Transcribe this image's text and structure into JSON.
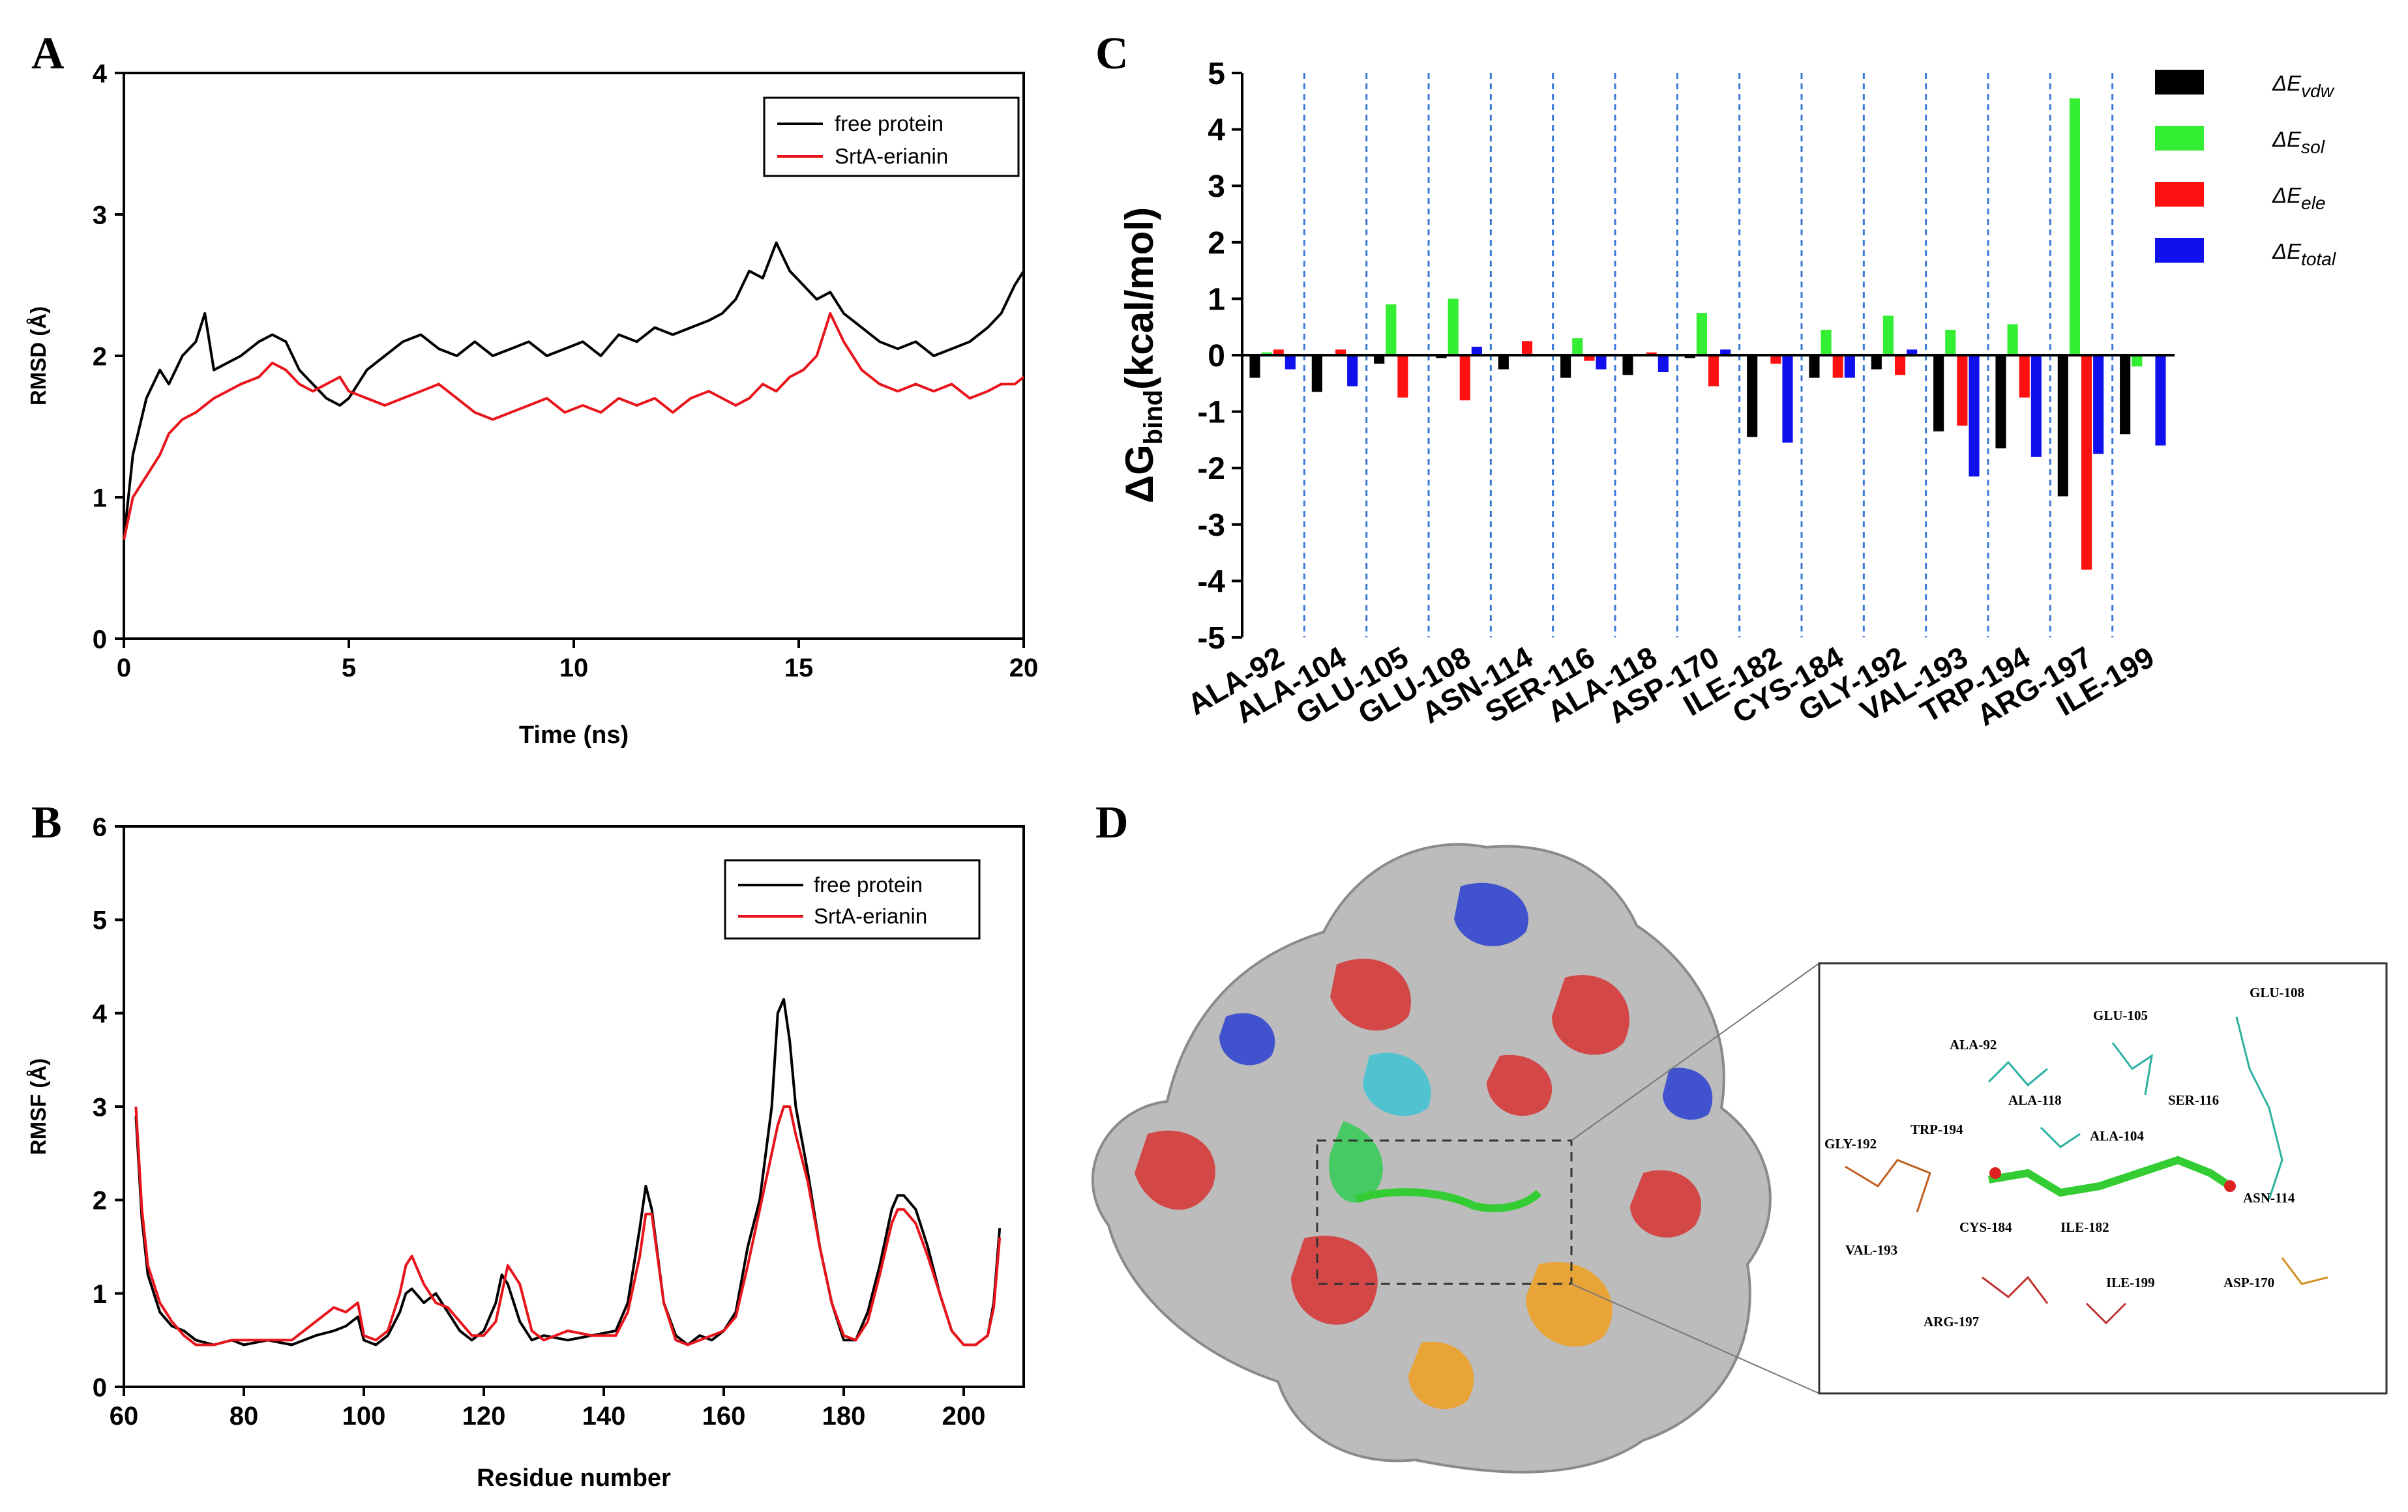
{
  "panels": {
    "A": "A",
    "B": "B",
    "C": "C",
    "D": "D"
  },
  "chart_data": [
    {
      "id": "A",
      "type": "line",
      "xlabel": "Time (ns)",
      "ylabel": "RMSD (Å)",
      "xlim": [
        0,
        20
      ],
      "ylim": [
        0,
        4
      ],
      "xticks": [
        0,
        5,
        10,
        15,
        20
      ],
      "yticks": [
        0,
        1,
        2,
        3,
        4
      ],
      "legend": {
        "placement": "top-right",
        "entries": [
          "free protein",
          "SrtA-erianin"
        ]
      },
      "series": [
        {
          "name": "free protein",
          "color": "#000000",
          "x": [
            0,
            0.2,
            0.5,
            0.8,
            1.0,
            1.3,
            1.6,
            1.8,
            2.0,
            2.3,
            2.6,
            3.0,
            3.3,
            3.6,
            3.9,
            4.2,
            4.5,
            4.8,
            5.0,
            5.4,
            5.8,
            6.2,
            6.6,
            7.0,
            7.4,
            7.8,
            8.2,
            8.6,
            9.0,
            9.4,
            9.8,
            10.2,
            10.6,
            11.0,
            11.4,
            11.8,
            12.2,
            12.6,
            13.0,
            13.3,
            13.6,
            13.9,
            14.2,
            14.5,
            14.8,
            15.1,
            15.4,
            15.7,
            16.0,
            16.4,
            16.8,
            17.2,
            17.6,
            18.0,
            18.4,
            18.8,
            19.2,
            19.5,
            19.8,
            20.0
          ],
          "y": [
            0.7,
            1.3,
            1.7,
            1.9,
            1.8,
            2.0,
            2.1,
            2.3,
            1.9,
            1.95,
            2.0,
            2.1,
            2.15,
            2.1,
            1.9,
            1.8,
            1.7,
            1.65,
            1.7,
            1.9,
            2.0,
            2.1,
            2.15,
            2.05,
            2.0,
            2.1,
            2.0,
            2.05,
            2.1,
            2.0,
            2.05,
            2.1,
            2.0,
            2.15,
            2.1,
            2.2,
            2.15,
            2.2,
            2.25,
            2.3,
            2.4,
            2.6,
            2.55,
            2.8,
            2.6,
            2.5,
            2.4,
            2.45,
            2.3,
            2.2,
            2.1,
            2.05,
            2.1,
            2.0,
            2.05,
            2.1,
            2.2,
            2.3,
            2.5,
            2.6
          ]
        },
        {
          "name": "SrtA-erianin",
          "color": "#e8141b",
          "x": [
            0,
            0.2,
            0.5,
            0.8,
            1.0,
            1.3,
            1.6,
            1.8,
            2.0,
            2.3,
            2.6,
            3.0,
            3.3,
            3.6,
            3.9,
            4.2,
            4.5,
            4.8,
            5.0,
            5.4,
            5.8,
            6.2,
            6.6,
            7.0,
            7.4,
            7.8,
            8.2,
            8.6,
            9.0,
            9.4,
            9.8,
            10.2,
            10.6,
            11.0,
            11.4,
            11.8,
            12.2,
            12.6,
            13.0,
            13.3,
            13.6,
            13.9,
            14.2,
            14.5,
            14.8,
            15.1,
            15.4,
            15.7,
            16.0,
            16.4,
            16.8,
            17.2,
            17.6,
            18.0,
            18.4,
            18.8,
            19.2,
            19.5,
            19.8,
            20.0
          ],
          "y": [
            0.7,
            1.0,
            1.15,
            1.3,
            1.45,
            1.55,
            1.6,
            1.65,
            1.7,
            1.75,
            1.8,
            1.85,
            1.95,
            1.9,
            1.8,
            1.75,
            1.8,
            1.85,
            1.75,
            1.7,
            1.65,
            1.7,
            1.75,
            1.8,
            1.7,
            1.6,
            1.55,
            1.6,
            1.65,
            1.7,
            1.6,
            1.65,
            1.6,
            1.7,
            1.65,
            1.7,
            1.6,
            1.7,
            1.75,
            1.7,
            1.65,
            1.7,
            1.8,
            1.75,
            1.85,
            1.9,
            2.0,
            2.3,
            2.1,
            1.9,
            1.8,
            1.75,
            1.8,
            1.75,
            1.8,
            1.7,
            1.75,
            1.8,
            1.8,
            1.85
          ]
        }
      ]
    },
    {
      "id": "B",
      "type": "line",
      "xlabel": "Residue number",
      "ylabel": "RMSF (Å)",
      "xlim": [
        60,
        210
      ],
      "ylim": [
        0,
        6
      ],
      "xticks": [
        60,
        80,
        100,
        120,
        140,
        160,
        180,
        200
      ],
      "yticks": [
        0,
        1,
        2,
        3,
        4,
        5,
        6
      ],
      "legend": {
        "placement": "top-right",
        "entries": [
          "free protein",
          "SrtA-erianin"
        ]
      },
      "series": [
        {
          "name": "free protein",
          "color": "#000000",
          "x": [
            62,
            63,
            64,
            66,
            68,
            70,
            72,
            75,
            78,
            80,
            84,
            88,
            92,
            95,
            97,
            99,
            100,
            102,
            104,
            106,
            107,
            108,
            110,
            112,
            114,
            116,
            118,
            120,
            122,
            123,
            124,
            126,
            128,
            130,
            134,
            138,
            142,
            144,
            146,
            147,
            148,
            150,
            152,
            154,
            156,
            158,
            160,
            162,
            164,
            166,
            168,
            169,
            170,
            171,
            172,
            174,
            176,
            178,
            180,
            182,
            184,
            186,
            188,
            189,
            190,
            192,
            194,
            196,
            198,
            200,
            202,
            204,
            205,
            206
          ],
          "y": [
            2.9,
            1.8,
            1.2,
            0.8,
            0.65,
            0.6,
            0.5,
            0.45,
            0.5,
            0.45,
            0.5,
            0.45,
            0.55,
            0.6,
            0.65,
            0.75,
            0.5,
            0.45,
            0.55,
            0.8,
            1.0,
            1.05,
            0.9,
            1.0,
            0.8,
            0.6,
            0.5,
            0.6,
            0.9,
            1.2,
            1.1,
            0.7,
            0.5,
            0.55,
            0.5,
            0.55,
            0.6,
            0.9,
            1.7,
            2.15,
            1.9,
            0.9,
            0.55,
            0.45,
            0.55,
            0.5,
            0.6,
            0.8,
            1.5,
            2.0,
            3.0,
            4.0,
            4.15,
            3.7,
            3.0,
            2.3,
            1.5,
            0.9,
            0.5,
            0.5,
            0.8,
            1.3,
            1.9,
            2.05,
            2.05,
            1.9,
            1.5,
            1.0,
            0.6,
            0.45,
            0.45,
            0.55,
            0.9,
            1.7
          ]
        },
        {
          "name": "SrtA-erianin",
          "color": "#e8141b",
          "x": [
            62,
            63,
            64,
            66,
            68,
            70,
            72,
            75,
            78,
            80,
            84,
            88,
            92,
            95,
            97,
            99,
            100,
            102,
            104,
            106,
            107,
            108,
            110,
            112,
            114,
            116,
            118,
            120,
            122,
            123,
            124,
            126,
            128,
            130,
            134,
            138,
            142,
            144,
            146,
            147,
            148,
            150,
            152,
            154,
            156,
            158,
            160,
            162,
            164,
            166,
            168,
            169,
            170,
            171,
            172,
            174,
            176,
            178,
            180,
            182,
            184,
            186,
            188,
            189,
            190,
            192,
            194,
            196,
            198,
            200,
            202,
            204,
            205,
            206
          ],
          "y": [
            3.0,
            1.9,
            1.3,
            0.9,
            0.7,
            0.55,
            0.45,
            0.45,
            0.5,
            0.5,
            0.5,
            0.5,
            0.7,
            0.85,
            0.8,
            0.9,
            0.55,
            0.5,
            0.6,
            1.0,
            1.3,
            1.4,
            1.1,
            0.9,
            0.85,
            0.7,
            0.55,
            0.55,
            0.7,
            1.0,
            1.3,
            1.1,
            0.6,
            0.5,
            0.6,
            0.55,
            0.55,
            0.8,
            1.4,
            1.85,
            1.85,
            0.9,
            0.5,
            0.45,
            0.5,
            0.55,
            0.6,
            0.75,
            1.3,
            1.9,
            2.5,
            2.8,
            3.0,
            3.0,
            2.7,
            2.2,
            1.5,
            0.9,
            0.55,
            0.5,
            0.7,
            1.2,
            1.75,
            1.9,
            1.9,
            1.75,
            1.4,
            1.0,
            0.6,
            0.45,
            0.45,
            0.55,
            0.85,
            1.6
          ]
        }
      ]
    },
    {
      "id": "C",
      "type": "bar",
      "ylabel": "ΔG_bind(kcal/mol)",
      "ylim": [
        -5,
        5
      ],
      "yticks": [
        5,
        4,
        3,
        2,
        1,
        0,
        -1,
        -2,
        -3,
        -4,
        -5
      ],
      "categories": [
        "ALA-92",
        "ALA-104",
        "GLU-105",
        "GLU-108",
        "ASN-114",
        "SER-116",
        "ALA-118",
        "ASP-170",
        "ILE-182",
        "CYS-184",
        "GLY-192",
        "VAL-193",
        "TRP-194",
        "ARG-197",
        "ILE-199"
      ],
      "legend": {
        "placement": "top-right",
        "entries": [
          "ΔE_vdw",
          "ΔE_sol",
          "ΔE_ele",
          "ΔE_total"
        ]
      },
      "series": [
        {
          "name": "ΔE_vdw",
          "color": "#000000",
          "values": [
            -0.4,
            -0.65,
            -0.15,
            -0.05,
            -0.25,
            -0.4,
            -0.35,
            -0.05,
            -1.45,
            -0.4,
            -0.25,
            -1.35,
            -1.65,
            -2.5,
            -1.4
          ]
        },
        {
          "name": "ΔE_sol",
          "color": "#33ee33",
          "values": [
            0.05,
            0.0,
            0.9,
            1.0,
            0.0,
            0.3,
            0.0,
            0.75,
            0.0,
            0.45,
            0.7,
            0.45,
            0.55,
            4.55,
            -0.2
          ]
        },
        {
          "name": "ΔE_ele",
          "color": "#ff1010",
          "values": [
            0.1,
            0.1,
            -0.75,
            -0.8,
            0.25,
            -0.1,
            0.05,
            -0.55,
            -0.15,
            -0.4,
            -0.35,
            -1.25,
            -0.75,
            -3.8,
            0.0
          ]
        },
        {
          "name": "ΔE_total",
          "color": "#1010ee",
          "values": [
            -0.25,
            -0.55,
            0.0,
            0.15,
            0.0,
            -0.25,
            -0.3,
            0.1,
            -1.55,
            -0.4,
            0.1,
            -2.15,
            -1.8,
            -1.75,
            -1.6
          ]
        }
      ]
    }
  ],
  "panelC": {
    "legend_base": "ΔE",
    "legend_subs": [
      "vdw",
      "sol",
      "ele",
      "total"
    ],
    "ylabel_main": "ΔG",
    "ylabel_sub": "bind",
    "ylabel_rest": "(kcal/mol)"
  },
  "panelD": {
    "residue_labels": [
      "GLU-108",
      "GLU-105",
      "ALA-92",
      "SER-116",
      "ALA-118",
      "ALA-104",
      "TRP-194",
      "GLY-192",
      "ASN-114",
      "ILE-182",
      "CYS-184",
      "VAL-193",
      "ILE-199",
      "ASP-170",
      "ARG-197"
    ]
  }
}
